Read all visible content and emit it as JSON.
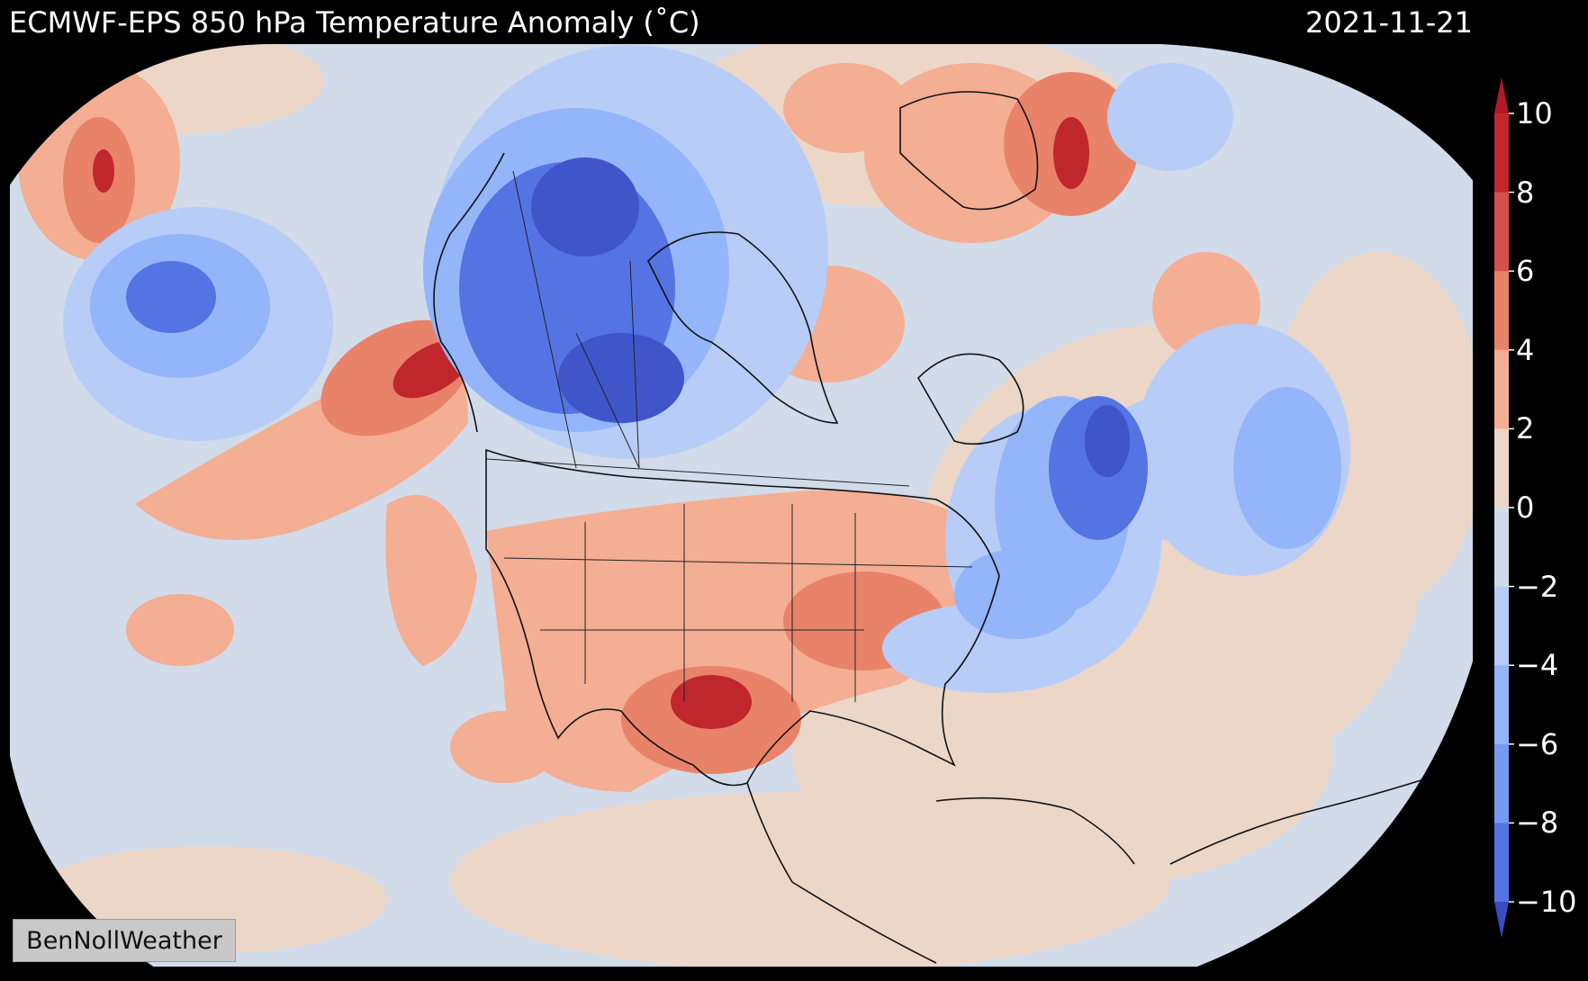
{
  "header": {
    "title": "ECMWF-EPS 850 hPa Temperature Anomaly (˚C)",
    "date": "2021-11-21"
  },
  "colorbar": {
    "ticks": [
      "10",
      "8",
      "6",
      "4",
      "2",
      "0",
      "−2",
      "−4",
      "−6",
      "−8",
      "−10"
    ],
    "levels": [
      10,
      8,
      6,
      4,
      2,
      0,
      -2,
      -4,
      -6,
      -8,
      -10
    ],
    "colors": [
      "#c0272d",
      "#d6504a",
      "#e8836a",
      "#f4ae93",
      "#ecd6c8",
      "#d2dbe9",
      "#b7cdf8",
      "#94b5fa",
      "#7699f3",
      "#5474e4",
      "#3f55c9"
    ],
    "extend_colors": {
      "max": "#b2182b",
      "min": "#3b4cc0"
    }
  },
  "watermark": {
    "text": "BenNollWeather"
  },
  "map": {
    "projection": "orthographic",
    "field": "850 hPa temperature anomaly",
    "background": "#000000",
    "anomaly_colors": {
      "strong_warm": "#c0272d",
      "warm": "#e8836a",
      "slight_warm": "#ecd6c8",
      "slight_cool": "#d2dbe9",
      "cool": "#94b5fa",
      "strong_cool": "#3f55c9"
    }
  }
}
